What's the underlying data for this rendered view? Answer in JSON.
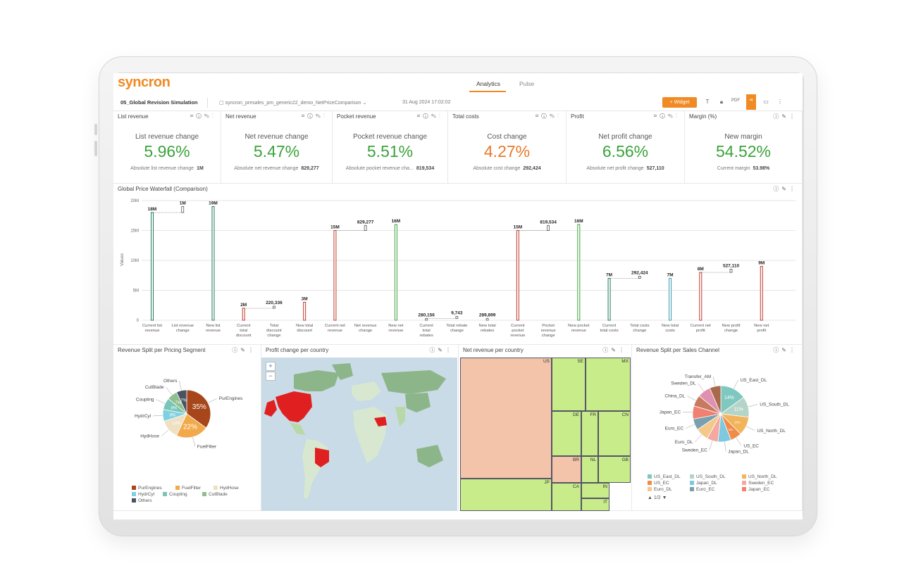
{
  "app": {
    "logo": "syncron",
    "nav_tabs": [
      "Analytics",
      "Pulse"
    ],
    "active_tab": "Analytics"
  },
  "subbar": {
    "dashboard_title": "05_Global Revision Simulation",
    "source": "syncron_presales_pm_generic22_demo_NetPriceComparison",
    "timestamp": "31 Aug 2024 17:02:02",
    "widget_button": "+ Widget",
    "accent_color": "#f08a24"
  },
  "kpis": [
    {
      "header": "List revenue",
      "title": "List revenue change",
      "value": "5.96%",
      "color": "green",
      "foot_label": "Absolute list revenue change",
      "foot_value": "1M"
    },
    {
      "header": "Net revenue",
      "title": "Net revenue change",
      "value": "5.47%",
      "color": "green",
      "foot_label": "Absolute net revenue change",
      "foot_value": "829,277"
    },
    {
      "header": "Pocket revenue",
      "title": "Pocket revenue change",
      "value": "5.51%",
      "color": "green",
      "foot_label": "Absolute pocket revenue cha...",
      "foot_value": "819,534"
    },
    {
      "header": "Total costs",
      "title": "Cost change",
      "value": "4.27%",
      "color": "orange",
      "foot_label": "Absolute cost change",
      "foot_value": "292,424"
    },
    {
      "header": "Profit",
      "title": "Net profit change",
      "value": "6.56%",
      "color": "green",
      "foot_label": "Absolute net profit change",
      "foot_value": "527,110"
    },
    {
      "header": "Margin (%)",
      "title": "New margin",
      "value": "54.52%",
      "color": "green",
      "foot_label": "Current margin",
      "foot_value": "53.98%"
    }
  ],
  "panels": {
    "waterfall": "Global Price Waterfall (Comparison)",
    "pie1": "Revenue Split per Pricing Segment",
    "map": "Profit change per country",
    "treemap": "Net revenue per country",
    "pie2": "Revenue Split per Sales Channel"
  },
  "chart_data": [
    {
      "type": "bar",
      "title": "Global Price Waterfall (Comparison)",
      "ylabel": "Values",
      "ylim": [
        0,
        20000000
      ],
      "yticks": [
        "0",
        "5M",
        "10M",
        "15M",
        "20M"
      ],
      "categories": [
        "Current list revenue",
        "List revenue change",
        "New list revenue",
        "Current total discount",
        "Total discount change",
        "New total discount",
        "Current net revenue",
        "Net revenue change",
        "New net revenue",
        "Current total rebates",
        "Total rebate change",
        "New total rebates",
        "Current pocket revenue",
        "Pocket revenue change",
        "New pocket revenue",
        "Current total costs",
        "Total costs change",
        "New total costs",
        "Current net profit",
        "New profit change",
        "New net profit"
      ],
      "values": [
        18000000,
        1000000,
        19000000,
        2000000,
        220336,
        3000000,
        15000000,
        829277,
        16000000,
        280156,
        9743,
        289899,
        15000000,
        819534,
        16000000,
        7000000,
        292424,
        7000000,
        8000000,
        527110,
        9000000
      ],
      "value_labels": [
        "18M",
        "1M",
        "19M",
        "2M",
        "220,336",
        "3M",
        "15M",
        "829,277",
        "16M",
        "280,156",
        "9,743",
        "289,899",
        "15M",
        "819,534",
        "16M",
        "7M",
        "292,424",
        "7M",
        "8M",
        "527,110",
        "9M"
      ],
      "bar_colors": [
        "#1e7a5a",
        "#d2691e",
        "#1e7a5a",
        "#c0392b",
        "#777",
        "#c0392b",
        "#c0392b",
        "#777",
        "#3ba33b",
        "#777",
        "#777",
        "#777",
        "#c0392b",
        "#777",
        "#3ba33b",
        "#1e7a5a",
        "#777",
        "#3a9ab0",
        "#c0392b",
        "#777",
        "#c0392b"
      ]
    },
    {
      "type": "pie",
      "title": "Revenue Split per Pricing Segment",
      "labels": [
        "PurEngines",
        "FuelFilter",
        "HydHose",
        "HydrCyl",
        "Coupling",
        "CutBlade",
        "Others"
      ],
      "values": [
        35,
        22,
        13,
        8,
        8,
        7,
        7
      ],
      "slice_labels": [
        "35%",
        "22%",
        "13%",
        "8%",
        "8%",
        "7%",
        "7%"
      ],
      "colors": [
        "#a6461a",
        "#f2a94a",
        "#efe0c2",
        "#7fd0e0",
        "#79c5b8",
        "#8fbf8f",
        "#4a5362"
      ]
    },
    {
      "type": "pie",
      "title": "Revenue Split per Sales Channel",
      "labels": [
        "US_East_DL",
        "US_South_DL",
        "US_North_DL",
        "US_EC",
        "Japan_DL",
        "Sweden_EC",
        "Euro_DL",
        "Euro_EC",
        "Japan_EC",
        "China_DL",
        "Sweden_DL",
        "Transfer_AM"
      ],
      "values": [
        14,
        11,
        10,
        6,
        7,
        6,
        7,
        6,
        7,
        6,
        7,
        6
      ],
      "slice_labels": [
        "14%",
        "11%",
        "10%",
        "6%",
        "",
        "",
        "",
        "",
        "",
        "",
        "",
        ""
      ],
      "colors": [
        "#7ec8c0",
        "#b4d4c8",
        "#f2b45a",
        "#f08c4a",
        "#7ec8e0",
        "#f4a8a0",
        "#f4c88a",
        "#7aa0b0",
        "#f08070",
        "#c87a60",
        "#e090b0",
        "#a86a4a"
      ],
      "legend_page": "1/2"
    },
    {
      "type": "heatmap",
      "title": "Net revenue per country",
      "cells": [
        "US",
        "SE",
        "MX",
        "DE",
        "FR",
        "CN",
        "BR",
        "NL",
        "GB",
        "JP",
        "CA",
        "IN",
        "IT"
      ]
    }
  ]
}
